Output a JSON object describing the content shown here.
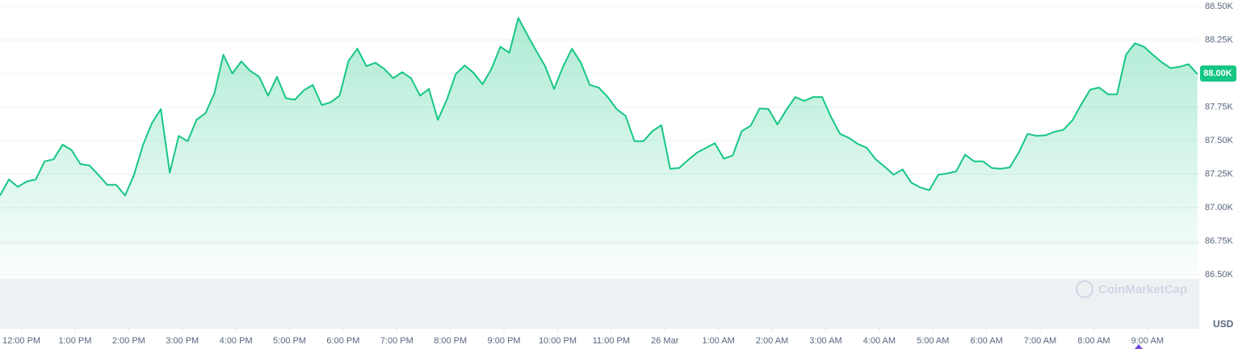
{
  "chart_data": {
    "type": "line",
    "color": "#16c784",
    "grid": true,
    "currency_label": "USD",
    "watermark": "CoinMarketCap",
    "last_price": {
      "value": 88000,
      "label": "88.00K"
    },
    "reference_line": 86735,
    "xlim": [
      -24,
      1318
    ],
    "ylim": [
      86500,
      88500
    ],
    "yticks": [
      {
        "value": 88500,
        "label": "88.50K"
      },
      {
        "value": 88250,
        "label": "88.25K"
      },
      {
        "value": 88000,
        "label": "88.00K"
      },
      {
        "value": 87750,
        "label": "87.75K"
      },
      {
        "value": 87500,
        "label": "87.50K"
      },
      {
        "value": 87250,
        "label": "87.25K"
      },
      {
        "value": 87000,
        "label": "87.00K"
      },
      {
        "value": 86750,
        "label": "86.75K"
      },
      {
        "value": 86500,
        "label": "86.50K"
      }
    ],
    "xticks": [
      {
        "value": 0,
        "label": "12:00 PM"
      },
      {
        "value": 60,
        "label": "1:00 PM"
      },
      {
        "value": 120,
        "label": "2:00 PM"
      },
      {
        "value": 180,
        "label": "3:00 PM"
      },
      {
        "value": 240,
        "label": "4:00 PM"
      },
      {
        "value": 300,
        "label": "5:00 PM"
      },
      {
        "value": 360,
        "label": "6:00 PM"
      },
      {
        "value": 420,
        "label": "7:00 PM"
      },
      {
        "value": 480,
        "label": "8:00 PM"
      },
      {
        "value": 540,
        "label": "9:00 PM"
      },
      {
        "value": 600,
        "label": "10:00 PM"
      },
      {
        "value": 660,
        "label": "11:00 PM"
      },
      {
        "value": 720,
        "label": "26 Mar"
      },
      {
        "value": 780,
        "label": "1:00 AM"
      },
      {
        "value": 840,
        "label": "2:00 AM"
      },
      {
        "value": 900,
        "label": "3:00 AM"
      },
      {
        "value": 960,
        "label": "4:00 AM"
      },
      {
        "value": 1020,
        "label": "5:00 AM"
      },
      {
        "value": 1080,
        "label": "6:00 AM"
      },
      {
        "value": 1140,
        "label": "7:00 AM"
      },
      {
        "value": 1200,
        "label": "8:00 AM"
      },
      {
        "value": 1260,
        "label": "9:00 AM"
      }
    ],
    "x": [
      -24,
      -14,
      -4,
      6,
      16,
      26,
      36,
      46,
      56,
      66,
      76,
      86,
      96,
      106,
      116,
      126,
      136,
      146,
      156,
      166,
      176,
      186,
      196,
      206,
      216,
      226,
      236,
      246,
      256,
      266,
      276,
      286,
      296,
      306,
      316,
      326,
      336,
      346,
      356,
      366,
      376,
      386,
      396,
      406,
      416,
      426,
      436,
      446,
      456,
      466,
      476,
      486,
      496,
      506,
      516,
      526,
      536,
      546,
      556,
      566,
      576,
      586,
      596,
      606,
      616,
      626,
      636,
      646,
      656,
      666,
      676,
      686,
      696,
      706,
      716,
      726,
      736,
      746,
      756,
      766,
      776,
      786,
      796,
      806,
      816,
      826,
      836,
      846,
      856,
      866,
      876,
      886,
      896,
      906,
      916,
      926,
      936,
      946,
      956,
      966,
      976,
      986,
      996,
      1006,
      1016,
      1026,
      1036,
      1046,
      1056,
      1066,
      1076,
      1086,
      1096,
      1106,
      1116,
      1126,
      1136,
      1146,
      1156,
      1166,
      1176,
      1186,
      1196,
      1206,
      1216,
      1226,
      1236,
      1246,
      1256,
      1266,
      1276,
      1286,
      1296,
      1306,
      1316
    ],
    "values": [
      87090,
      87210,
      87155,
      87195,
      87210,
      87345,
      87360,
      87470,
      87430,
      87325,
      87315,
      87245,
      87170,
      87170,
      87090,
      87245,
      87465,
      87630,
      87735,
      87260,
      87535,
      87495,
      87655,
      87705,
      87855,
      88140,
      88000,
      88090,
      88020,
      87975,
      87835,
      87975,
      87815,
      87805,
      87875,
      87915,
      87765,
      87785,
      87835,
      88095,
      88185,
      88055,
      88080,
      88035,
      87965,
      88010,
      87965,
      87835,
      87885,
      87655,
      87805,
      87995,
      88060,
      88005,
      87920,
      88035,
      88200,
      88155,
      88415,
      88290,
      88170,
      88055,
      87885,
      88050,
      88185,
      88080,
      87915,
      87895,
      87825,
      87735,
      87685,
      87495,
      87495,
      87570,
      87615,
      87290,
      87295,
      87355,
      87410,
      87445,
      87480,
      87365,
      87390,
      87570,
      87610,
      87740,
      87735,
      87620,
      87730,
      87825,
      87795,
      87825,
      87825,
      87675,
      87550,
      87520,
      87475,
      87445,
      87360,
      87305,
      87245,
      87285,
      87185,
      87150,
      87130,
      87245,
      87255,
      87270,
      87395,
      87345,
      87345,
      87295,
      87290,
      87300,
      87410,
      87550,
      87535,
      87540,
      87565,
      87580,
      87650,
      87770,
      87880,
      87895,
      87845,
      87845,
      88140,
      88225,
      88200,
      88140,
      88085,
      88040,
      88050,
      88070,
      87995
    ]
  }
}
